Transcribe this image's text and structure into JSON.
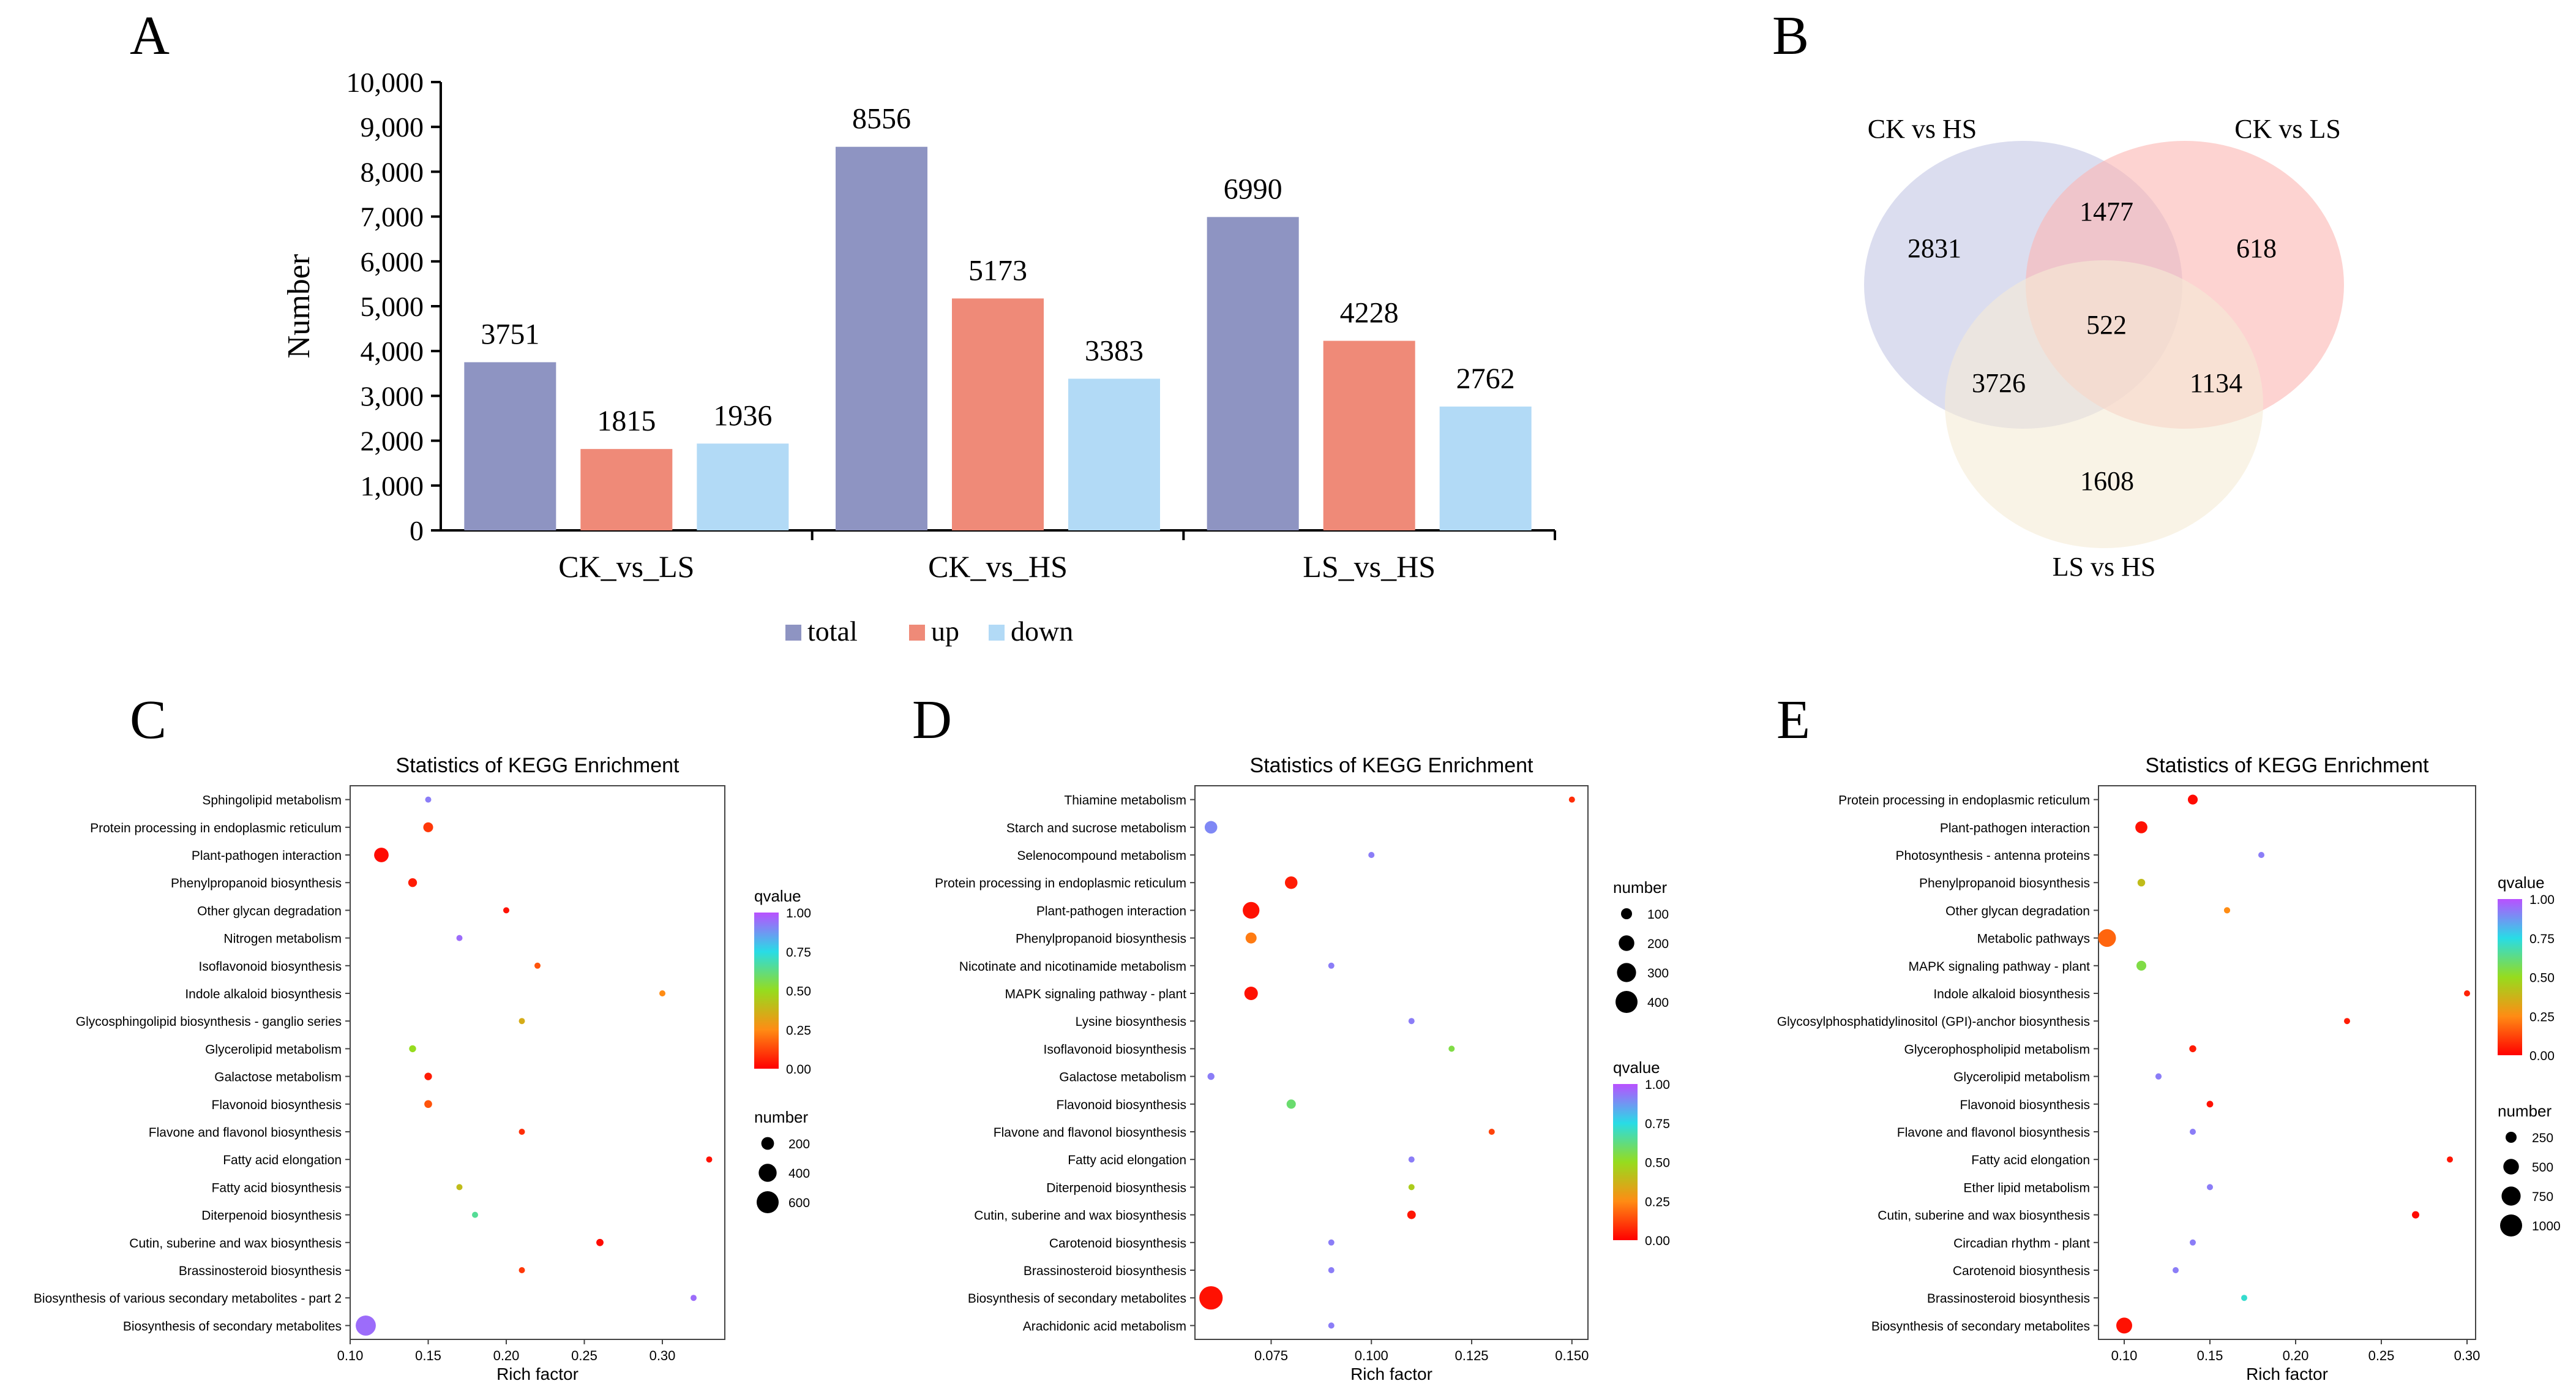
{
  "chart_data": [
    {
      "panel": "A",
      "type": "bar",
      "title": "",
      "xlabel": "",
      "ylabel": "Number",
      "ylim": [
        0,
        10000
      ],
      "yticks": [
        "0",
        "1,000",
        "2,000",
        "3,000",
        "4,000",
        "5,000",
        "6,000",
        "7,000",
        "8,000",
        "9,000",
        "10,000"
      ],
      "categories": [
        "CK_vs_LS",
        "CK_vs_HS",
        "LS_vs_HS"
      ],
      "series": [
        {
          "name": "total",
          "values": [
            3751,
            8556,
            6990
          ],
          "color": "#8e94c2"
        },
        {
          "name": "up",
          "values": [
            1815,
            5173,
            4228
          ],
          "color": "#ef8a78"
        },
        {
          "name": "down",
          "values": [
            1936,
            3383,
            2762
          ],
          "color": "#b2daf6"
        }
      ],
      "legend_position": "bottom"
    },
    {
      "panel": "B",
      "type": "venn",
      "sets": [
        {
          "name": "CK vs HS",
          "color": "#c3c7e5"
        },
        {
          "name": "CK vs LS",
          "color": "#fbb5b3"
        },
        {
          "name": "LS vs HS",
          "color": "#f5ebd6"
        }
      ],
      "regions": {
        "ckhs_only": "2831",
        "ckls_only": "618",
        "lshs_only": "1608",
        "ckhs_ckls": "1477",
        "ckhs_lshs": "3726",
        "ckls_lshs": "1134",
        "all": "522"
      }
    },
    {
      "panel": "C",
      "type": "scatter",
      "title": "Statistics of KEGG Enrichment",
      "xlabel": "Rich factor",
      "xlim": [
        0.1,
        0.34
      ],
      "xticks": [
        0.1,
        0.15,
        0.2,
        0.25,
        0.3
      ],
      "xtick_labels": [
        "0.10",
        "0.15",
        "0.20",
        "0.25",
        "0.30"
      ],
      "pathways": [
        "Sphingolipid metabolism",
        "Protein processing in endoplasmic reticulum",
        "Plant-pathogen interaction",
        "Phenylpropanoid biosynthesis",
        "Other glycan degradation",
        "Nitrogen metabolism",
        "Isoflavonoid biosynthesis",
        "Indole alkaloid biosynthesis",
        "Glycosphingolipid biosynthesis - ganglio series",
        "Glycerolipid metabolism",
        "Galactose metabolism",
        "Flavonoid biosynthesis",
        "Flavone and flavonol biosynthesis",
        "Fatty acid elongation",
        "Fatty acid biosynthesis",
        "Diterpenoid biosynthesis",
        "Cutin, suberine and wax biosynthesis",
        "Brassinosteroid biosynthesis",
        "Biosynthesis of various secondary metabolites - part 2",
        "Biosynthesis of secondary metabolites"
      ],
      "rich_factor": [
        0.15,
        0.15,
        0.12,
        0.14,
        0.2,
        0.17,
        0.22,
        0.3,
        0.21,
        0.14,
        0.15,
        0.15,
        0.21,
        0.33,
        0.17,
        0.18,
        0.26,
        0.21,
        0.32,
        0.11
      ],
      "number": [
        45,
        120,
        260,
        95,
        45,
        40,
        25,
        15,
        20,
        60,
        70,
        75,
        30,
        30,
        40,
        35,
        65,
        30,
        15,
        500
      ],
      "qvalue": [
        0.92,
        0.1,
        0.02,
        0.05,
        0.03,
        0.95,
        0.15,
        0.25,
        0.35,
        0.5,
        0.05,
        0.15,
        0.08,
        0.03,
        0.4,
        0.65,
        0.02,
        0.1,
        0.95,
        0.95
      ],
      "color_legend": {
        "title": "qvalue",
        "ticks": [
          "1.00",
          "0.75",
          "0.50",
          "0.25",
          "0.00"
        ]
      },
      "size_legend": {
        "title": "number",
        "values": [
          200,
          400,
          600
        ],
        "labels": [
          "200",
          "400",
          "600"
        ]
      }
    },
    {
      "panel": "D",
      "type": "scatter",
      "title": "Statistics of KEGG Enrichment",
      "xlabel": "Rich factor",
      "xlim": [
        0.056,
        0.154
      ],
      "xticks": [
        0.075,
        0.1,
        0.125,
        0.15
      ],
      "xtick_labels": [
        "0.075",
        "0.100",
        "0.125",
        "0.150"
      ],
      "pathways": [
        "Thiamine metabolism",
        "Starch and sucrose metabolism",
        "Selenocompound metabolism",
        "Protein processing in endoplasmic reticulum",
        "Plant-pathogen interaction",
        "Phenylpropanoid biosynthesis",
        "Nicotinate and nicotinamide metabolism",
        "MAPK signaling pathway - plant",
        "Lysine biosynthesis",
        "Isoflavonoid biosynthesis",
        "Galactose metabolism",
        "Flavonoid biosynthesis",
        "Flavone and flavonol biosynthesis",
        "Fatty acid elongation",
        "Diterpenoid biosynthesis",
        "Cutin, suberine and wax biosynthesis",
        "Carotenoid biosynthesis",
        "Brassinosteroid biosynthesis",
        "Biosynthesis of secondary metabolites",
        "Arachidonic acid metabolism"
      ],
      "rich_factor": [
        0.15,
        0.06,
        0.1,
        0.08,
        0.07,
        0.07,
        0.09,
        0.07,
        0.11,
        0.12,
        0.06,
        0.08,
        0.13,
        0.11,
        0.11,
        0.11,
        0.09,
        0.09,
        0.06,
        0.09
      ],
      "number": [
        20,
        130,
        20,
        130,
        230,
        100,
        15,
        150,
        12,
        18,
        40,
        70,
        25,
        20,
        25,
        60,
        30,
        22,
        450,
        15
      ],
      "qvalue": [
        0.08,
        0.9,
        0.92,
        0.05,
        0.03,
        0.22,
        0.92,
        0.03,
        0.92,
        0.55,
        0.92,
        0.6,
        0.12,
        0.92,
        0.45,
        0.04,
        0.92,
        0.92,
        0.03,
        0.92
      ],
      "color_legend": {
        "title": "qvalue",
        "ticks": [
          "1.00",
          "0.75",
          "0.50",
          "0.25",
          "0.00"
        ]
      },
      "size_legend": {
        "title": "number",
        "values": [
          100,
          200,
          300,
          400
        ],
        "labels": [
          "100",
          "200",
          "300",
          "400"
        ]
      }
    },
    {
      "panel": "E",
      "type": "scatter",
      "title": "Statistics of KEGG Enrichment",
      "xlabel": "Rich factor",
      "xlim": [
        0.085,
        0.305
      ],
      "xticks": [
        0.1,
        0.15,
        0.2,
        0.25,
        0.3
      ],
      "xtick_labels": [
        "0.10",
        "0.15",
        "0.20",
        "0.25",
        "0.30"
      ],
      "pathways": [
        "Protein processing in endoplasmic reticulum",
        "Plant-pathogen interaction",
        "Photosynthesis - antenna proteins",
        "Phenylpropanoid biosynthesis",
        "Other glycan degradation",
        "Metabolic pathways",
        "MAPK signaling pathway - plant",
        "Indole alkaloid biosynthesis",
        "Glycosylphosphatidylinositol (GPI)-anchor biosynthesis",
        "Glycerophospholipid metabolism",
        "Glycerolipid metabolism",
        "Flavonoid biosynthesis",
        "Flavone and flavonol biosynthesis",
        "Fatty acid elongation",
        "Ether lipid metabolism",
        "Cutin, suberine and wax biosynthesis",
        "Circadian rhythm - plant",
        "Carotenoid biosynthesis",
        "Brassinosteroid biosynthesis",
        "Biosynthesis of secondary metabolites"
      ],
      "rich_factor": [
        0.14,
        0.11,
        0.18,
        0.11,
        0.16,
        0.09,
        0.11,
        0.3,
        0.23,
        0.14,
        0.12,
        0.15,
        0.14,
        0.29,
        0.15,
        0.27,
        0.14,
        0.13,
        0.17,
        0.1
      ],
      "number": [
        200,
        300,
        40,
        120,
        80,
        650,
        200,
        25,
        30,
        100,
        80,
        90,
        40,
        35,
        40,
        110,
        50,
        60,
        50,
        520
      ],
      "qvalue": [
        0.02,
        0.03,
        0.92,
        0.4,
        0.25,
        0.18,
        0.55,
        0.06,
        0.05,
        0.05,
        0.92,
        0.03,
        0.92,
        0.04,
        0.92,
        0.02,
        0.92,
        0.92,
        0.72,
        0.03
      ],
      "color_legend": {
        "title": "qvalue",
        "ticks": [
          "1.00",
          "0.75",
          "0.50",
          "0.25",
          "0.00"
        ]
      },
      "size_legend": {
        "title": "number",
        "values": [
          250,
          500,
          750,
          1000
        ],
        "labels": [
          "250",
          "500",
          "750",
          "1000"
        ]
      }
    }
  ]
}
